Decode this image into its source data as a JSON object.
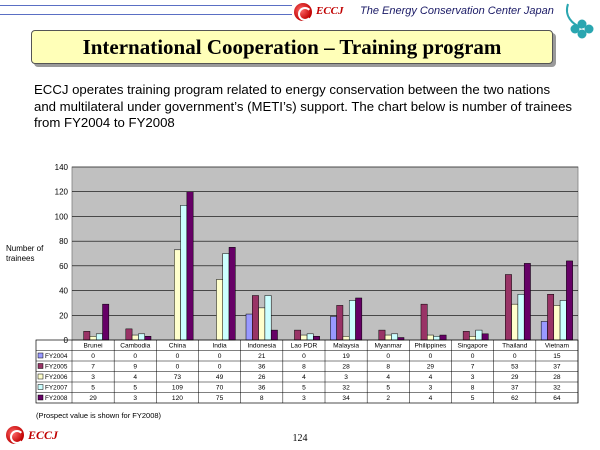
{
  "header": {
    "logo_text": "ECCJ",
    "org_name": "The Energy Conservation Center Japan"
  },
  "title": "International Cooperation – Training program",
  "intro": "ECCJ operates training program related to energy conservation between the two nations and multilateral under government’s (METI’s) support. The chart below is number of trainees from FY2004 to FY2008",
  "footer": {
    "logo_text": "ECCJ",
    "page_number": "124"
  },
  "chart_data": {
    "type": "bar",
    "ylabel_line1": "Number of",
    "ylabel_line2": "trainees",
    "ylim": [
      0,
      140
    ],
    "yticks": [
      "0",
      "20",
      "40",
      "60",
      "80",
      "100",
      "120",
      "140"
    ],
    "grid": true,
    "categories": [
      "Brunei",
      "Cambodia",
      "China",
      "India",
      "Indonesia",
      "Lao PDR",
      "Malaysia",
      "Myanmar",
      "Philippines",
      "Singapore",
      "Thailand",
      "Vietnam"
    ],
    "series": [
      {
        "name": "FY2004",
        "color": "#9999ff",
        "values": [
          0,
          0,
          0,
          0,
          21,
          0,
          19,
          0,
          0,
          0,
          0,
          15
        ]
      },
      {
        "name": "FY2005",
        "color": "#993366",
        "values": [
          7,
          9,
          0,
          0,
          36,
          8,
          28,
          8,
          29,
          7,
          53,
          37
        ]
      },
      {
        "name": "FY2006",
        "color": "#ffffcc",
        "values": [
          3,
          4,
          73,
          49,
          26,
          4,
          3,
          4,
          4,
          3,
          29,
          28
        ]
      },
      {
        "name": "FY2007",
        "color": "#ccffff",
        "values": [
          5,
          5,
          109,
          70,
          36,
          5,
          32,
          5,
          3,
          8,
          37,
          32
        ]
      },
      {
        "name": "FY2008",
        "color": "#660066",
        "values": [
          29,
          3,
          120,
          75,
          8,
          3,
          34,
          2,
          4,
          5,
          62,
          64
        ]
      }
    ],
    "note": "(Prospect value is shown for FY2008)"
  }
}
